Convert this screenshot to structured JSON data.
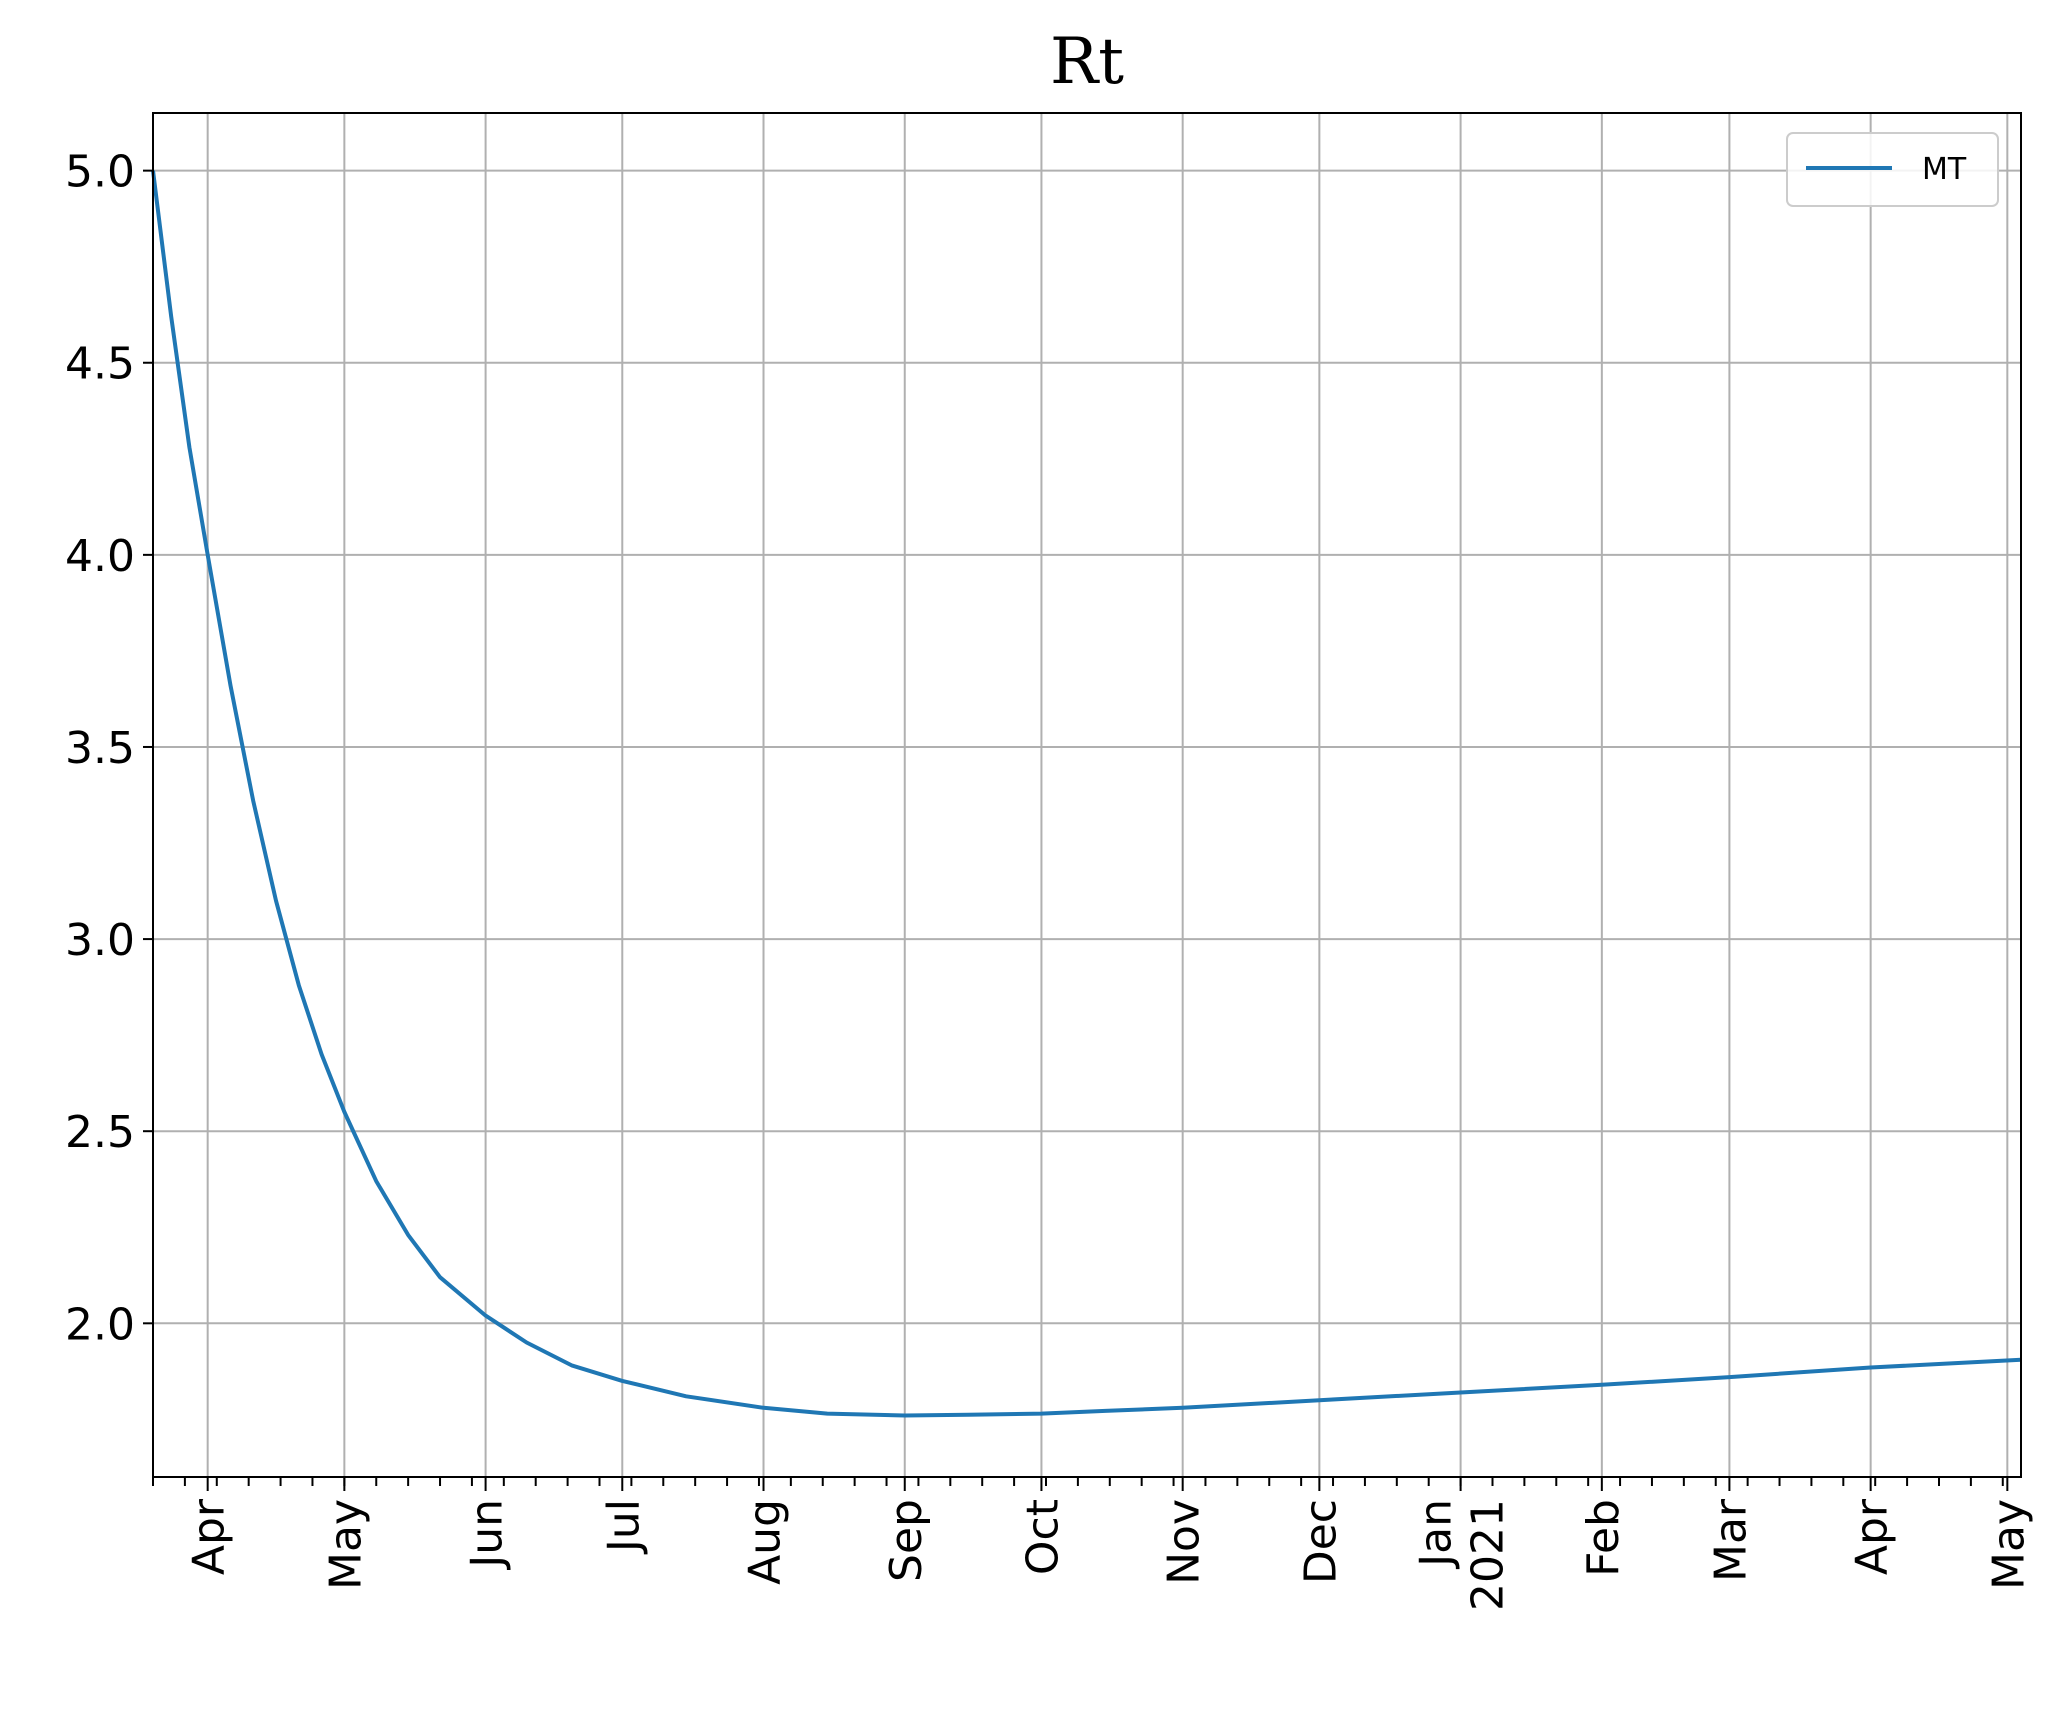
{
  "chart_data": {
    "type": "line",
    "title": "Rt",
    "xlabel": "",
    "ylabel": "",
    "x_axis_type": "date",
    "xlim": [
      "2020-03-20",
      "2021-05-04"
    ],
    "ylim": [
      1.6,
      5.15
    ],
    "grid": true,
    "legend": {
      "position": "top-right",
      "entries": [
        "MT"
      ]
    },
    "series_color": "#1f77b4",
    "y_ticks": [
      {
        "value": 2.0,
        "label": "2.0"
      },
      {
        "value": 2.5,
        "label": "2.5"
      },
      {
        "value": 3.0,
        "label": "3.0"
      },
      {
        "value": 3.5,
        "label": "3.5"
      },
      {
        "value": 4.0,
        "label": "4.0"
      },
      {
        "value": 4.5,
        "label": "4.5"
      },
      {
        "value": 5.0,
        "label": "5.0"
      }
    ],
    "x_major_ticks": [
      {
        "date": "2020-04-01",
        "label": "Apr"
      },
      {
        "date": "2020-05-01",
        "label": "May"
      },
      {
        "date": "2020-06-01",
        "label": "Jun"
      },
      {
        "date": "2020-07-01",
        "label": "Jul"
      },
      {
        "date": "2020-08-01",
        "label": "Aug"
      },
      {
        "date": "2020-09-01",
        "label": "Sep"
      },
      {
        "date": "2020-10-01",
        "label": "Oct"
      },
      {
        "date": "2020-11-01",
        "label": "Nov"
      },
      {
        "date": "2020-12-01",
        "label": "Dec"
      },
      {
        "date": "2021-01-01",
        "label": "Jan\n2021"
      },
      {
        "date": "2021-02-01",
        "label": "Feb"
      },
      {
        "date": "2021-03-01",
        "label": "Mar"
      },
      {
        "date": "2021-04-01",
        "label": "Apr"
      },
      {
        "date": "2021-05-01",
        "label": "May"
      }
    ],
    "series": [
      {
        "name": "MT",
        "points": [
          [
            "2020-03-20",
            5.0
          ],
          [
            "2020-03-24",
            4.62
          ],
          [
            "2020-03-28",
            4.28
          ],
          [
            "2020-04-01",
            4.0
          ],
          [
            "2020-04-06",
            3.66
          ],
          [
            "2020-04-11",
            3.36
          ],
          [
            "2020-04-16",
            3.1
          ],
          [
            "2020-04-21",
            2.88
          ],
          [
            "2020-04-26",
            2.7
          ],
          [
            "2020-05-01",
            2.55
          ],
          [
            "2020-05-08",
            2.37
          ],
          [
            "2020-05-15",
            2.23
          ],
          [
            "2020-05-22",
            2.12
          ],
          [
            "2020-06-01",
            2.02
          ],
          [
            "2020-06-10",
            1.95
          ],
          [
            "2020-06-20",
            1.89
          ],
          [
            "2020-07-01",
            1.85
          ],
          [
            "2020-07-15",
            1.81
          ],
          [
            "2020-08-01",
            1.78
          ],
          [
            "2020-08-15",
            1.765
          ],
          [
            "2020-09-01",
            1.76
          ],
          [
            "2020-09-15",
            1.762
          ],
          [
            "2020-10-01",
            1.765
          ],
          [
            "2020-10-15",
            1.772
          ],
          [
            "2020-11-01",
            1.78
          ],
          [
            "2020-12-01",
            1.8
          ],
          [
            "2021-01-01",
            1.82
          ],
          [
            "2021-02-01",
            1.84
          ],
          [
            "2021-03-01",
            1.86
          ],
          [
            "2021-04-01",
            1.885
          ],
          [
            "2021-05-04",
            1.905
          ]
        ]
      }
    ]
  }
}
